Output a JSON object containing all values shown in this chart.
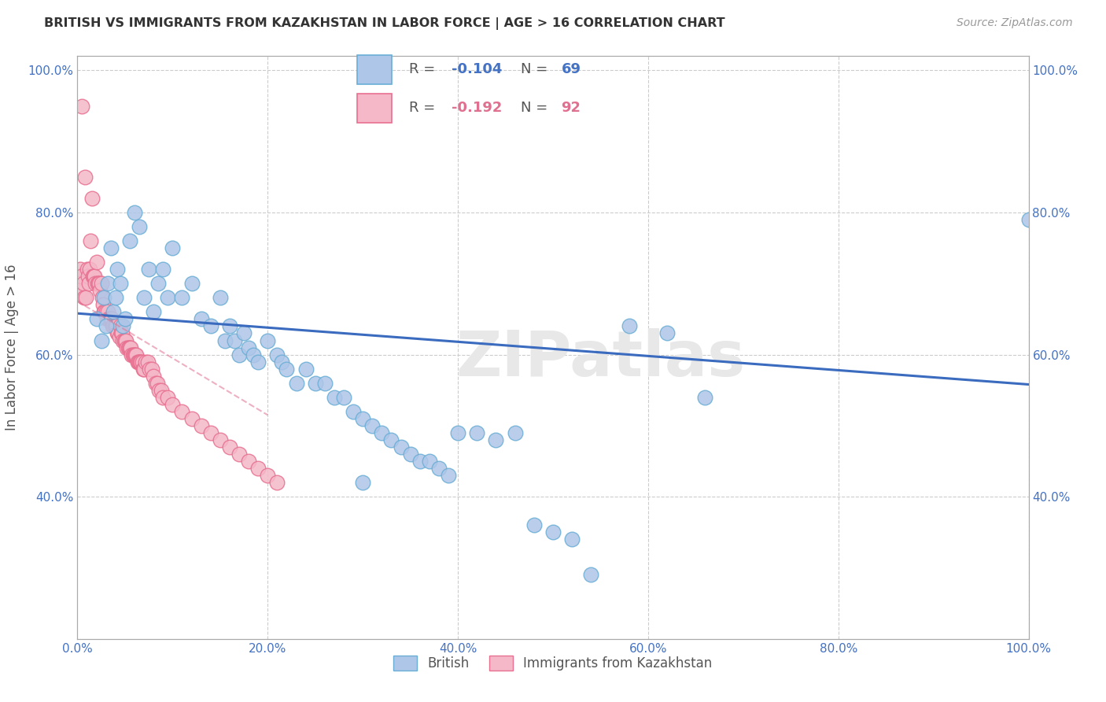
{
  "title": "BRITISH VS IMMIGRANTS FROM KAZAKHSTAN IN LABOR FORCE | AGE > 16 CORRELATION CHART",
  "source_text": "Source: ZipAtlas.com",
  "ylabel": "In Labor Force | Age > 16",
  "xlim": [
    0.0,
    1.0
  ],
  "ylim": [
    0.2,
    1.02
  ],
  "xtick_labels": [
    "0.0%",
    "20.0%",
    "40.0%",
    "60.0%",
    "80.0%",
    "100.0%"
  ],
  "xtick_positions": [
    0.0,
    0.2,
    0.4,
    0.6,
    0.8,
    1.0
  ],
  "ytick_labels": [
    "40.0%",
    "60.0%",
    "80.0%",
    "100.0%"
  ],
  "ytick_positions": [
    0.4,
    0.6,
    0.8,
    1.0
  ],
  "british_color": "#aec6e8",
  "british_edge_color": "#6aaed6",
  "kazakh_color": "#f4b8c8",
  "kazakh_edge_color": "#e87090",
  "trendline_british_color": "#3a6bbf",
  "trendline_kazakh_color": "#e07090",
  "R_british": -0.104,
  "N_british": 69,
  "R_kazakh": -0.192,
  "N_kazakh": 92,
  "legend_label_british": "British",
  "legend_label_kazakh": "Immigrants from Kazakhstan",
  "watermark": "ZIPatlas",
  "british_x": [
    0.02,
    0.025,
    0.028,
    0.03,
    0.032,
    0.035,
    0.038,
    0.04,
    0.042,
    0.045,
    0.048,
    0.05,
    0.055,
    0.06,
    0.065,
    0.07,
    0.075,
    0.08,
    0.085,
    0.09,
    0.095,
    0.1,
    0.11,
    0.12,
    0.13,
    0.14,
    0.15,
    0.155,
    0.16,
    0.165,
    0.17,
    0.175,
    0.18,
    0.185,
    0.19,
    0.2,
    0.21,
    0.215,
    0.22,
    0.23,
    0.24,
    0.25,
    0.26,
    0.27,
    0.28,
    0.29,
    0.3,
    0.31,
    0.32,
    0.33,
    0.34,
    0.35,
    0.36,
    0.37,
    0.38,
    0.39,
    0.4,
    0.42,
    0.44,
    0.46,
    0.48,
    0.5,
    0.52,
    0.54,
    0.58,
    0.62,
    0.66,
    1.0,
    0.3
  ],
  "british_y": [
    0.65,
    0.62,
    0.68,
    0.64,
    0.7,
    0.75,
    0.66,
    0.68,
    0.72,
    0.7,
    0.64,
    0.65,
    0.76,
    0.8,
    0.78,
    0.68,
    0.72,
    0.66,
    0.7,
    0.72,
    0.68,
    0.75,
    0.68,
    0.7,
    0.65,
    0.64,
    0.68,
    0.62,
    0.64,
    0.62,
    0.6,
    0.63,
    0.61,
    0.6,
    0.59,
    0.62,
    0.6,
    0.59,
    0.58,
    0.56,
    0.58,
    0.56,
    0.56,
    0.54,
    0.54,
    0.52,
    0.51,
    0.5,
    0.49,
    0.48,
    0.47,
    0.46,
    0.45,
    0.45,
    0.44,
    0.43,
    0.49,
    0.49,
    0.48,
    0.49,
    0.36,
    0.35,
    0.34,
    0.29,
    0.64,
    0.63,
    0.54,
    0.79,
    0.42
  ],
  "kazakh_x": [
    0.002,
    0.003,
    0.004,
    0.005,
    0.006,
    0.007,
    0.008,
    0.009,
    0.01,
    0.011,
    0.012,
    0.013,
    0.014,
    0.015,
    0.016,
    0.017,
    0.018,
    0.019,
    0.02,
    0.021,
    0.022,
    0.023,
    0.024,
    0.025,
    0.026,
    0.027,
    0.028,
    0.029,
    0.03,
    0.031,
    0.032,
    0.033,
    0.034,
    0.035,
    0.036,
    0.037,
    0.038,
    0.039,
    0.04,
    0.041,
    0.042,
    0.043,
    0.044,
    0.045,
    0.046,
    0.047,
    0.048,
    0.049,
    0.05,
    0.051,
    0.052,
    0.053,
    0.054,
    0.055,
    0.056,
    0.057,
    0.058,
    0.059,
    0.06,
    0.061,
    0.062,
    0.063,
    0.064,
    0.065,
    0.066,
    0.067,
    0.068,
    0.069,
    0.07,
    0.072,
    0.074,
    0.076,
    0.078,
    0.08,
    0.082,
    0.084,
    0.086,
    0.088,
    0.09,
    0.095,
    0.1,
    0.11,
    0.12,
    0.13,
    0.14,
    0.15,
    0.16,
    0.17,
    0.18,
    0.19,
    0.2,
    0.21
  ],
  "kazakh_y": [
    0.69,
    0.72,
    0.71,
    0.95,
    0.7,
    0.68,
    0.85,
    0.68,
    0.72,
    0.71,
    0.7,
    0.72,
    0.76,
    0.82,
    0.71,
    0.71,
    0.71,
    0.7,
    0.73,
    0.7,
    0.7,
    0.7,
    0.69,
    0.7,
    0.68,
    0.67,
    0.66,
    0.66,
    0.66,
    0.65,
    0.66,
    0.65,
    0.65,
    0.65,
    0.65,
    0.64,
    0.64,
    0.64,
    0.64,
    0.64,
    0.63,
    0.63,
    0.625,
    0.64,
    0.63,
    0.63,
    0.62,
    0.62,
    0.62,
    0.62,
    0.61,
    0.61,
    0.61,
    0.61,
    0.61,
    0.6,
    0.6,
    0.6,
    0.6,
    0.6,
    0.6,
    0.59,
    0.59,
    0.59,
    0.59,
    0.59,
    0.59,
    0.58,
    0.58,
    0.59,
    0.59,
    0.58,
    0.58,
    0.57,
    0.56,
    0.56,
    0.55,
    0.55,
    0.54,
    0.54,
    0.53,
    0.52,
    0.51,
    0.5,
    0.49,
    0.48,
    0.47,
    0.46,
    0.45,
    0.44,
    0.43,
    0.42
  ]
}
